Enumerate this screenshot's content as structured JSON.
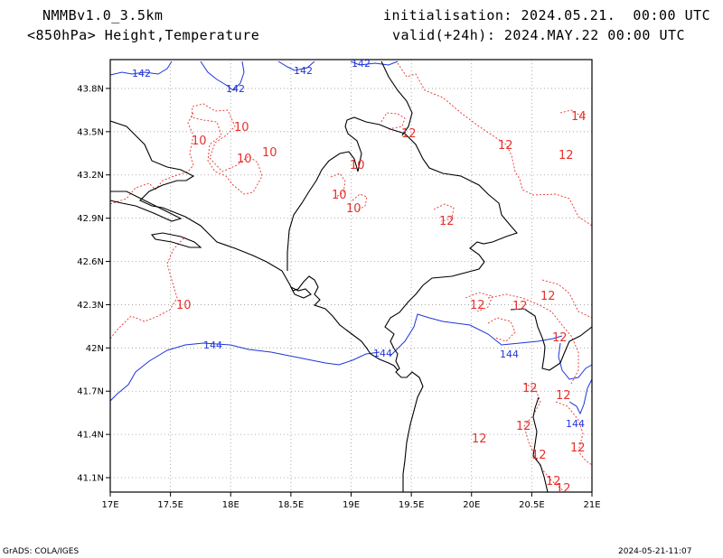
{
  "header": {
    "model": "NMMBv1.0_3.5km",
    "level_fields": "<850hPa> Height,Temperature",
    "init": "initialisation: 2024.05.21.  00:00 UTC",
    "valid": "valid(+24h): 2024.MAY.22 00:00 UTC"
  },
  "footer": {
    "credit": "GrADS: COLA/IGES",
    "timestamp": "2024-05-21-11:07"
  },
  "map": {
    "lon_ticks": [
      "17E",
      "17.5E",
      "18E",
      "18.5E",
      "19E",
      "19.5E",
      "20E",
      "20.5E",
      "21E"
    ],
    "lat_ticks": [
      "43.8N",
      "43.5N",
      "43.2N",
      "42.9N",
      "42.6N",
      "42.3N",
      "42N",
      "41.7N",
      "41.4N",
      "41.1N"
    ],
    "lon_range": [
      17,
      21
    ],
    "lat_range": [
      41.0,
      44.0
    ],
    "grid": "dotted",
    "colors": {
      "height_contour": "#1f35d8",
      "temperature_contour": "#e8302c",
      "coast_border": "#000000"
    },
    "height_labels": [
      "142",
      "142",
      "142",
      "142",
      "144",
      "144",
      "144",
      "144"
    ],
    "temperature_labels": [
      "10",
      "10",
      "10",
      "10",
      "10",
      "10",
      "10",
      "10",
      "12",
      "12",
      "12",
      "12",
      "12",
      "12",
      "12",
      "12",
      "12",
      "12",
      "12",
      "12",
      "12",
      "12",
      "12",
      "12",
      "14"
    ]
  }
}
